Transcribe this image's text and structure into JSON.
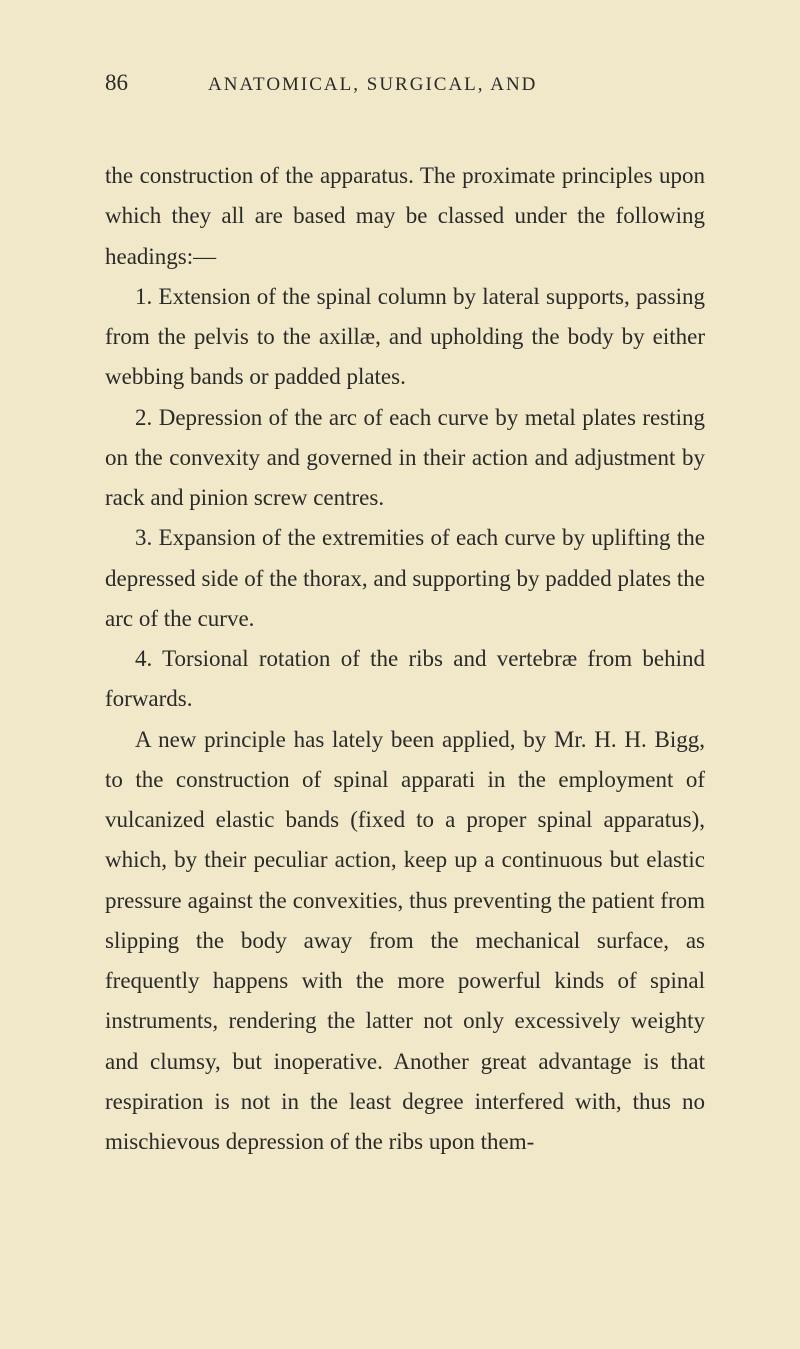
{
  "header": {
    "pageNumber": "86",
    "runningHead": "ANATOMICAL, SURGICAL, AND"
  },
  "paragraphs": {
    "p1": "the construction of the apparatus. The proximate principles upon which they all are based may be classed under the following headings:—",
    "p2": "1. Extension of the spinal column by lateral supports, passing from the pelvis to the axillæ, and upholding the body by either webbing bands or padded plates.",
    "p3": "2. Depression of the arc of each curve by metal plates resting on the convexity and governed in their action and adjustment by rack and pinion screw centres.",
    "p4": "3. Expansion of the extremities of each curve by uplifting the depressed side of the thorax, and supporting by padded plates the arc of the curve.",
    "p5": "4. Torsional rotation of the ribs and vertebræ from behind forwards.",
    "p6": "A new principle has lately been applied, by Mr. H. H. Bigg, to the construction of spinal apparati in the employment of vulcanized elastic bands (fixed to a proper spinal apparatus), which, by their peculiar action, keep up a continuous but elastic pressure against the convexities, thus preventing the patient from slipping the body away from the mechanical surface, as frequently happens with the more powerful kinds of spinal instruments, rendering the latter not only excessively weighty and clumsy, but inoperative. Another great advantage is that respiration is not in the least degree interfered with, thus no mischievous depression of the ribs upon them-"
  }
}
